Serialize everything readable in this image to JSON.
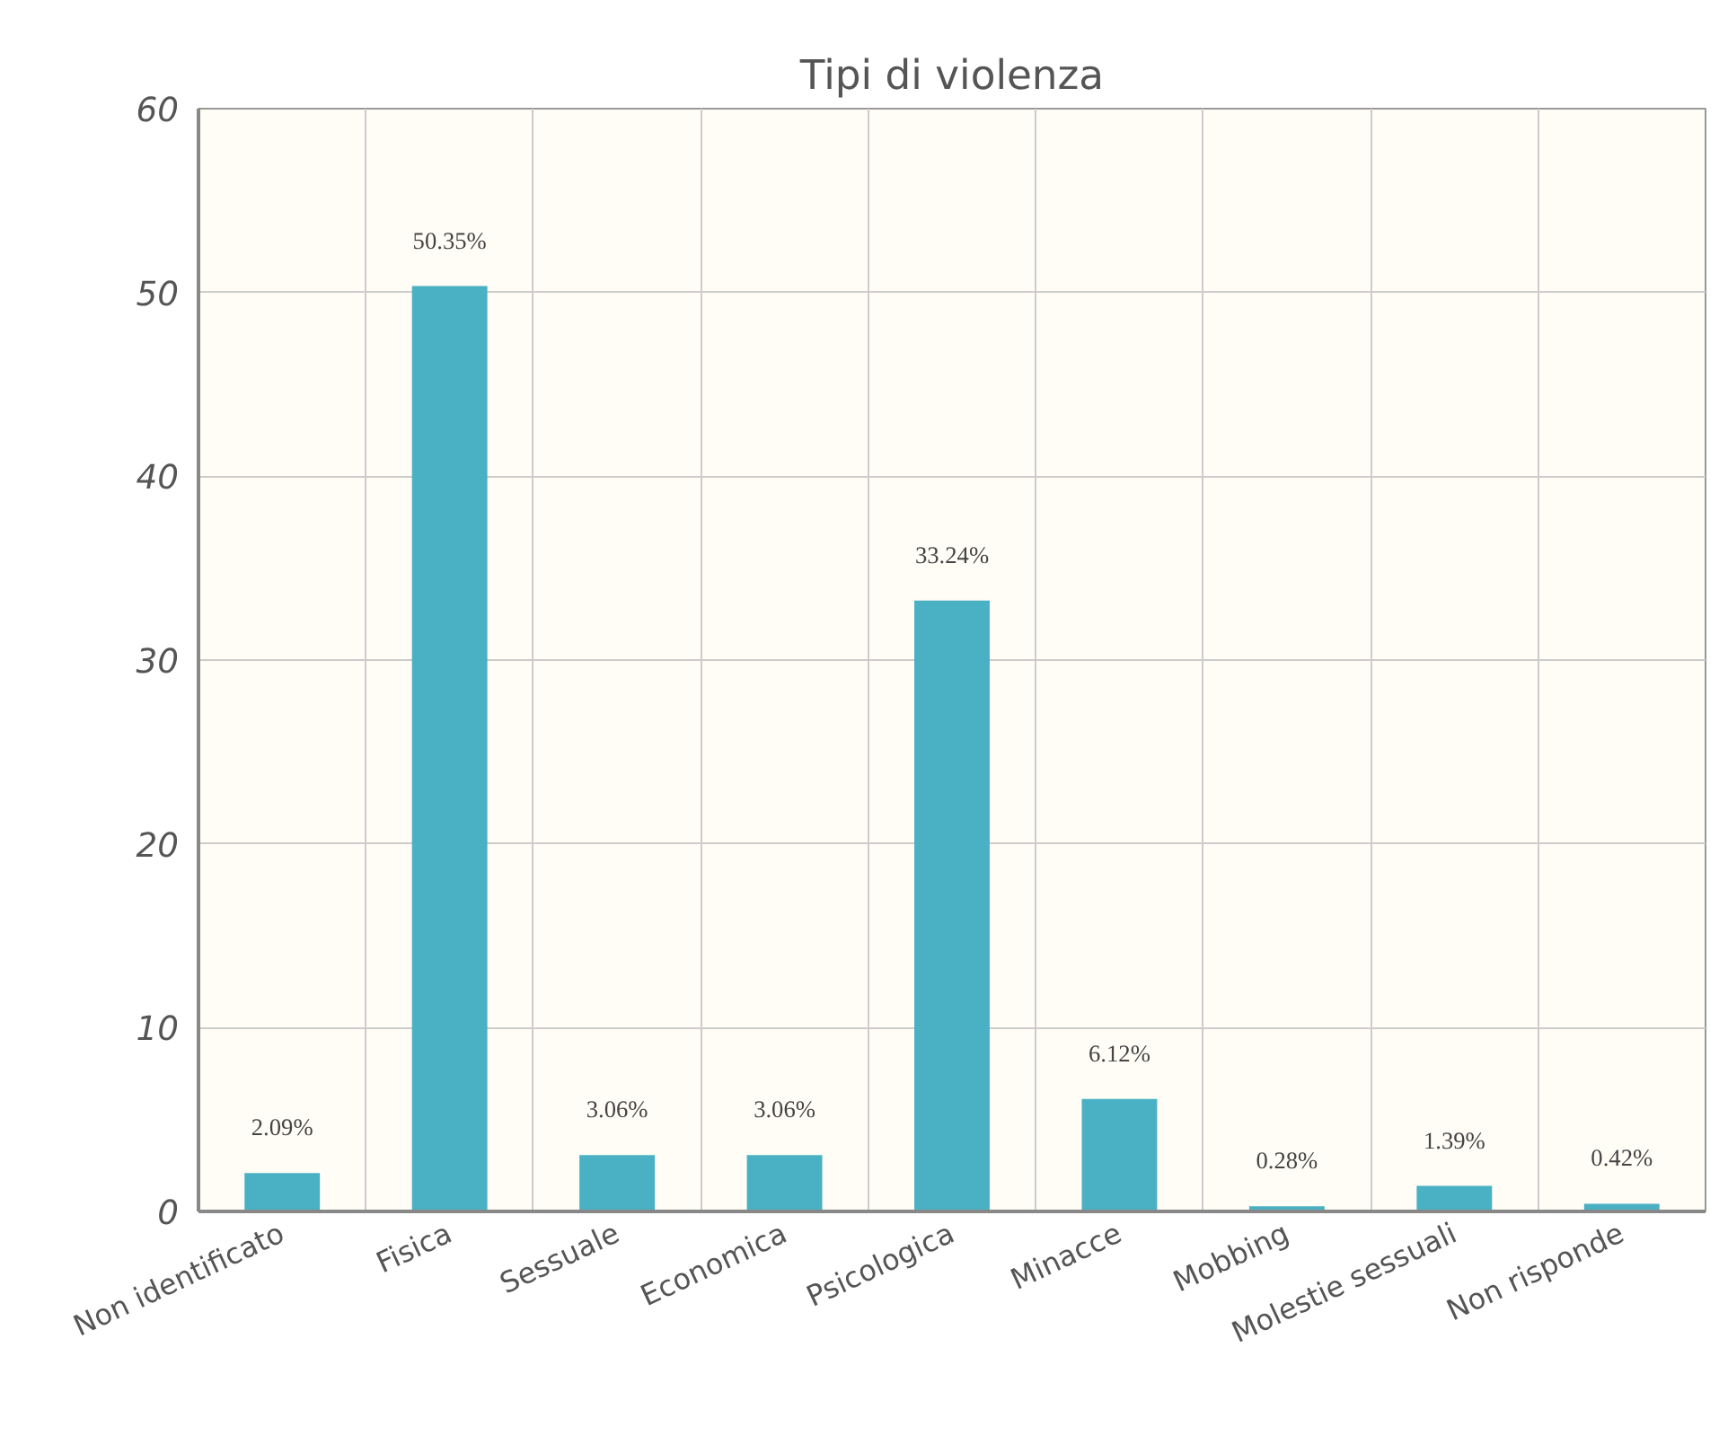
{
  "chart_data": {
    "type": "bar",
    "title": "Tipi di violenza",
    "categories": [
      "Non identificato",
      "Fisica",
      "Sessuale",
      "Economica",
      "Psicologica",
      "Minacce",
      "Mobbing",
      "Molestie sessuali",
      "Non risponde"
    ],
    "values": [
      2.09,
      50.35,
      3.06,
      3.06,
      33.24,
      6.12,
      0.28,
      1.39,
      0.42
    ],
    "value_labels": [
      "2.09%",
      "50.35%",
      "3.06%",
      "3.06%",
      "33.24%",
      "6.12%",
      "0.28%",
      "1.39%",
      "0.42%"
    ],
    "color": "#4ab0c4",
    "ylim": [
      0,
      60
    ],
    "yticks": [
      0,
      10,
      20,
      30,
      40,
      50,
      60
    ],
    "grid": true
  }
}
